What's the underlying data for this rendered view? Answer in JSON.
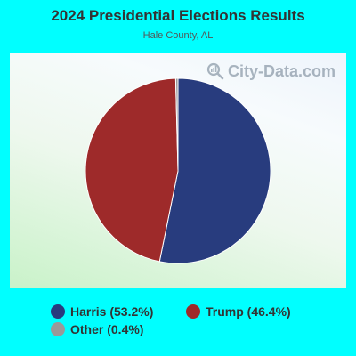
{
  "header": {
    "title": "2024 Presidential Elections Results",
    "subtitle": "Hale County, AL"
  },
  "watermark": {
    "text": "City-Data.com",
    "icon": "magnifier-chart-icon"
  },
  "chart_data": {
    "type": "pie",
    "title": "2024 Presidential Elections Results",
    "subtitle": "Hale County, AL",
    "legend_position": "bottom",
    "slices": [
      {
        "name": "Harris",
        "value": 53.2,
        "label": "Harris (53.2%)",
        "color": "#283c7e"
      },
      {
        "name": "Trump",
        "value": 46.4,
        "label": "Trump (46.4%)",
        "color": "#9e2a2a"
      },
      {
        "name": "Other",
        "value": 0.4,
        "label": "Other (0.4%)",
        "color": "#999999"
      }
    ]
  }
}
